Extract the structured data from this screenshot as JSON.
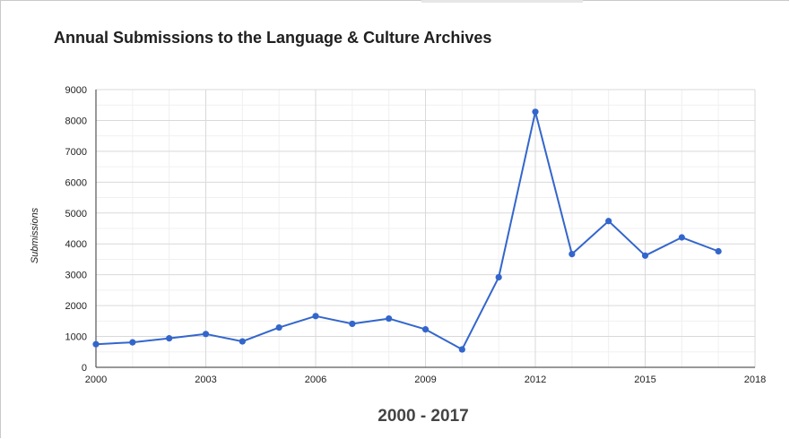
{
  "chart_data": {
    "type": "line",
    "title": "Annual Submissions to the Language & Culture Archives",
    "xlabel": "2000 - 2017",
    "ylabel": "Submissions",
    "xlim": [
      2000,
      2018
    ],
    "ylim": [
      0,
      9000
    ],
    "x_ticks": [
      2000,
      2003,
      2006,
      2009,
      2012,
      2015,
      2018
    ],
    "y_ticks": [
      0,
      1000,
      2000,
      3000,
      4000,
      5000,
      6000,
      7000,
      8000,
      9000
    ],
    "grid": true,
    "legend": "none",
    "series": [
      {
        "color": "#3366cc",
        "x": [
          2000,
          2001,
          2002,
          2003,
          2004,
          2005,
          2006,
          2007,
          2008,
          2009,
          2010,
          2011,
          2012,
          2013,
          2014,
          2015,
          2016,
          2017
        ],
        "y": [
          750,
          810,
          940,
          1080,
          840,
          1290,
          1660,
          1410,
          1580,
          1230,
          580,
          2920,
          8280,
          3670,
          4740,
          3620,
          4210,
          3760
        ]
      }
    ]
  }
}
